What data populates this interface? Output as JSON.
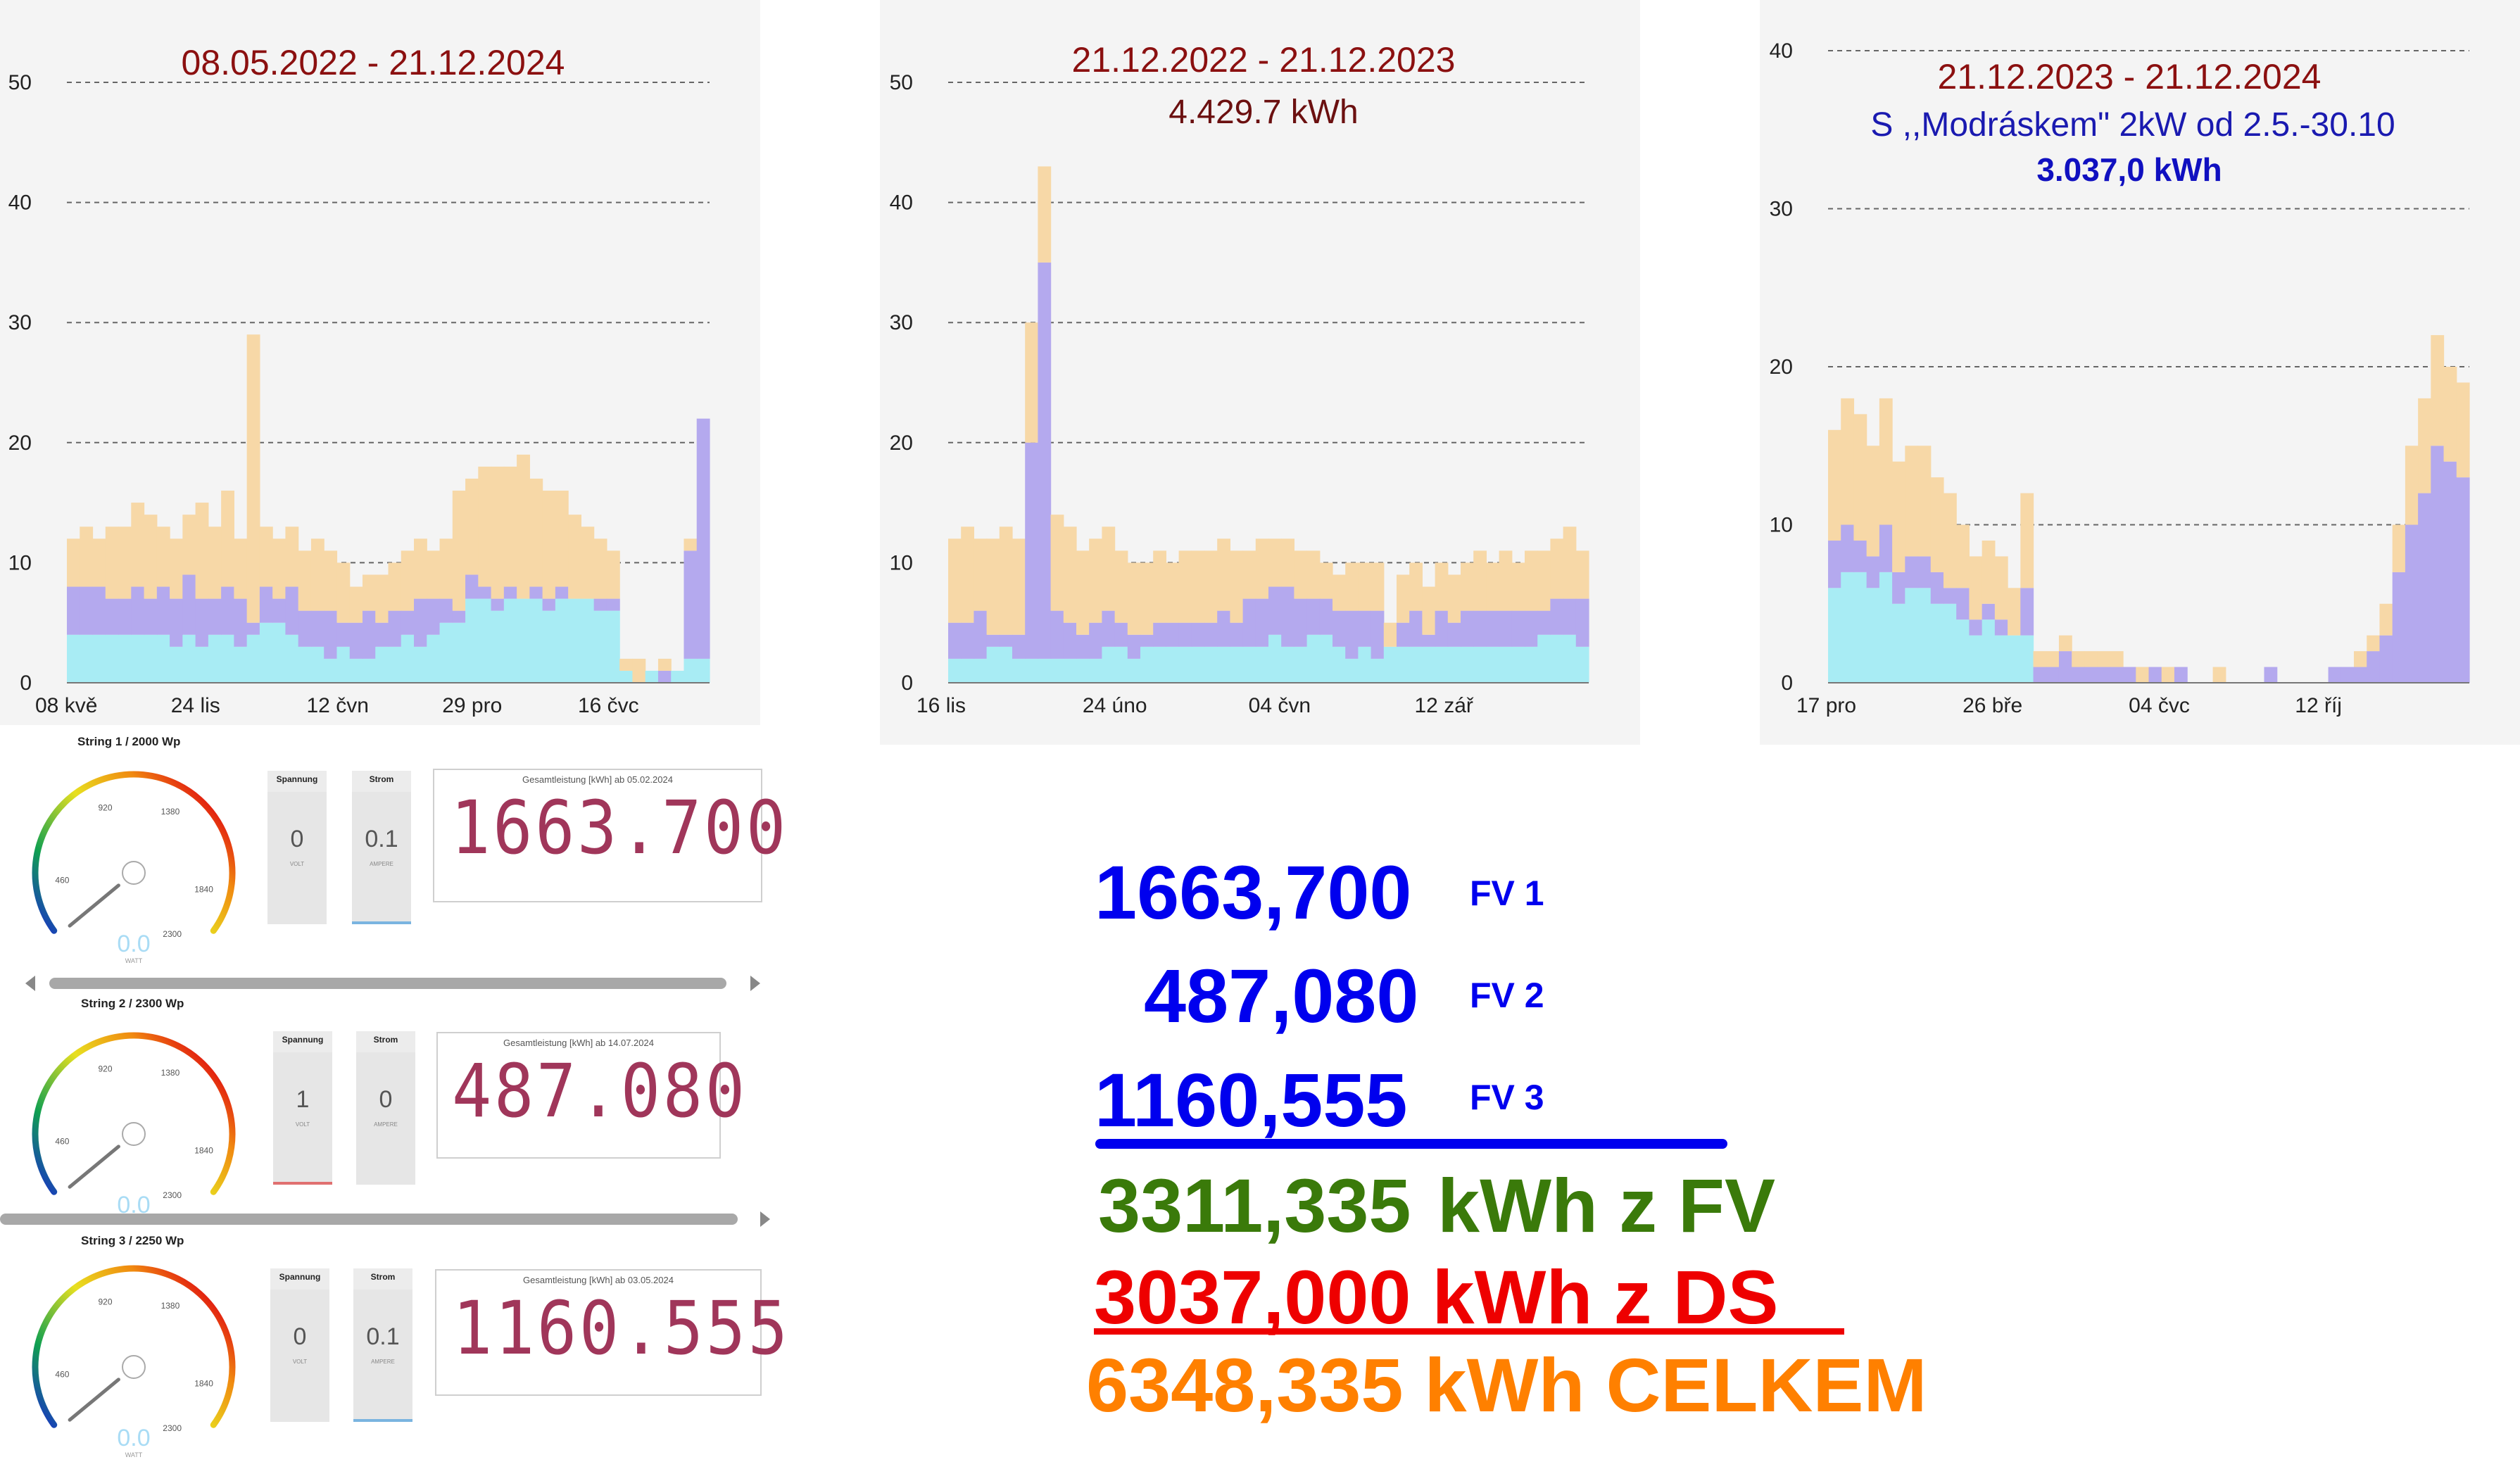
{
  "chart_data": [
    {
      "type": "area",
      "title": "08.05.2022 - 21.12.2024",
      "subtitle": "",
      "subtitle2": "",
      "ylim": [
        0,
        50
      ],
      "yticks": [
        "0",
        "10",
        "20",
        "30",
        "40",
        "50"
      ],
      "xticks": [
        "08 kvě",
        "24 lis",
        "12 čvn",
        "29 pro",
        "16 čvc"
      ],
      "grid": "dashed-horizontal",
      "series": [
        {
          "color": "#a8ecf4",
          "values": [
            4,
            4,
            4,
            4,
            4,
            4,
            4,
            4,
            3,
            4,
            3,
            4,
            4,
            3,
            4,
            5,
            5,
            4,
            3,
            3,
            2,
            3,
            2,
            2,
            3,
            3,
            4,
            3,
            4,
            5,
            5,
            7,
            7,
            6,
            7,
            7,
            7,
            6,
            7,
            7,
            7,
            6,
            6,
            1,
            0,
            1,
            0,
            1,
            2,
            2
          ]
        },
        {
          "color": "#b4a9ee",
          "values": [
            8,
            8,
            8,
            7,
            7,
            8,
            7,
            8,
            7,
            9,
            7,
            7,
            8,
            7,
            5,
            8,
            7,
            8,
            6,
            6,
            6,
            5,
            5,
            6,
            5,
            6,
            6,
            7,
            7,
            7,
            6,
            9,
            8,
            7,
            8,
            7,
            8,
            7,
            8,
            7,
            7,
            7,
            7,
            1,
            0,
            1,
            1,
            1,
            11,
            22
          ]
        },
        {
          "color": "#f7d8a7",
          "values": [
            12,
            13,
            12,
            13,
            13,
            15,
            14,
            13,
            12,
            14,
            15,
            13,
            16,
            12,
            29,
            13,
            12,
            13,
            11,
            12,
            11,
            10,
            8,
            9,
            9,
            10,
            11,
            12,
            11,
            12,
            16,
            17,
            18,
            18,
            18,
            19,
            17,
            16,
            16,
            14,
            13,
            12,
            11,
            2,
            2,
            1,
            2,
            1,
            12,
            20
          ]
        }
      ]
    },
    {
      "type": "area",
      "title": "21.12.2022 - 21.12.2023",
      "subtitle": "4.429.7 kWh",
      "subtitle2": "",
      "ylim": [
        0,
        50
      ],
      "yticks": [
        "0",
        "10",
        "20",
        "30",
        "40",
        "50"
      ],
      "xticks": [
        "16 lis",
        "24 úno",
        "04 čvn",
        "12 zář"
      ],
      "grid": "dashed-horizontal",
      "series": [
        {
          "color": "#a8ecf4",
          "values": [
            2,
            2,
            2,
            3,
            3,
            2,
            2,
            2,
            2,
            2,
            2,
            2,
            3,
            3,
            2,
            3,
            3,
            3,
            3,
            3,
            3,
            3,
            3,
            3,
            3,
            4,
            3,
            3,
            4,
            4,
            3,
            2,
            3,
            2,
            3,
            3,
            3,
            3,
            3,
            3,
            3,
            3,
            3,
            3,
            3,
            3,
            4,
            4,
            4,
            3
          ]
        },
        {
          "color": "#b4a9ee",
          "values": [
            5,
            5,
            6,
            4,
            4,
            4,
            20,
            35,
            6,
            5,
            4,
            5,
            6,
            5,
            4,
            4,
            5,
            5,
            5,
            5,
            5,
            6,
            5,
            7,
            7,
            8,
            8,
            7,
            7,
            7,
            6,
            6,
            6,
            6,
            2,
            5,
            6,
            4,
            6,
            5,
            6,
            6,
            6,
            6,
            6,
            6,
            6,
            7,
            7,
            7
          ]
        },
        {
          "color": "#f7d8a7",
          "values": [
            12,
            13,
            12,
            12,
            13,
            12,
            30,
            43,
            14,
            13,
            11,
            12,
            13,
            11,
            10,
            10,
            11,
            10,
            11,
            11,
            11,
            12,
            11,
            11,
            12,
            12,
            12,
            11,
            11,
            10,
            9,
            10,
            10,
            10,
            5,
            9,
            10,
            8,
            10,
            9,
            10,
            11,
            10,
            11,
            10,
            11,
            11,
            12,
            13,
            11
          ]
        }
      ]
    },
    {
      "type": "area",
      "title": "21.12.2023 - 21.12.2024",
      "subtitle": "S ,,Modráskem\" 2kW od 2.5.-30.10",
      "subtitle2": "3.037,0 kWh",
      "ylim": [
        0,
        40
      ],
      "yticks": [
        "0",
        "10",
        "20",
        "30",
        "40"
      ],
      "xticks": [
        "17 pro",
        "26 bře",
        "04 čvc",
        "12 říj"
      ],
      "grid": "dashed-horizontal",
      "series": [
        {
          "color": "#a8ecf4",
          "values": [
            6,
            7,
            7,
            6,
            7,
            5,
            6,
            6,
            5,
            5,
            4,
            3,
            4,
            3,
            3,
            3,
            0,
            0,
            0,
            0,
            0,
            0,
            0,
            0,
            0,
            0,
            0,
            0,
            0,
            0,
            0,
            0,
            0,
            0,
            0,
            0,
            0,
            0,
            0,
            0,
            0,
            0,
            0,
            0,
            0,
            0,
            0,
            0,
            0,
            0
          ]
        },
        {
          "color": "#b4a9ee",
          "values": [
            9,
            10,
            9,
            8,
            10,
            7,
            8,
            8,
            7,
            6,
            6,
            4,
            5,
            4,
            3,
            6,
            1,
            1,
            2,
            1,
            1,
            1,
            1,
            1,
            0,
            1,
            0,
            1,
            0,
            0,
            0,
            0,
            0,
            0,
            1,
            0,
            0,
            0,
            0,
            1,
            1,
            1,
            2,
            3,
            7,
            10,
            12,
            15,
            14,
            13
          ]
        },
        {
          "color": "#f7d8a7",
          "values": [
            16,
            18,
            17,
            15,
            18,
            14,
            15,
            15,
            13,
            12,
            10,
            8,
            9,
            8,
            6,
            12,
            2,
            2,
            3,
            2,
            2,
            2,
            2,
            1,
            1,
            1,
            1,
            1,
            0,
            0,
            1,
            0,
            0,
            0,
            1,
            0,
            0,
            0,
            0,
            1,
            1,
            2,
            3,
            5,
            10,
            15,
            18,
            22,
            20,
            19
          ]
        }
      ]
    }
  ],
  "strings": [
    {
      "title": "String 1 / 2000 Wp",
      "gauge_value": "0.0",
      "gauge_unit": "WATT",
      "gauge_labels": [
        "460",
        "920",
        "1380",
        "1840",
        "2300"
      ],
      "spannung_label": "Spannung",
      "spannung_value": "0",
      "spannung_unit": "VOLT",
      "strom_label": "Strom",
      "strom_value": "0.1",
      "strom_unit": "AMPERE",
      "lcd_header": "Gesamtleistung [kWh] ab 05.02.2024",
      "lcd_value": "1663.700"
    },
    {
      "title": "String 2 / 2300 Wp",
      "gauge_value": "0.0",
      "gauge_unit": "WATT",
      "gauge_labels": [
        "460",
        "920",
        "1380",
        "1840",
        "2300"
      ],
      "spannung_label": "Spannung",
      "spannung_value": "1",
      "spannung_unit": "VOLT",
      "strom_label": "Strom",
      "strom_value": "0",
      "strom_unit": "AMPERE",
      "lcd_header": "Gesamtleistung [kWh] ab 14.07.2024",
      "lcd_value": "487.080"
    },
    {
      "title": "String 3 / 2250 Wp",
      "gauge_value": "0.0",
      "gauge_unit": "WATT",
      "gauge_labels": [
        "460",
        "920",
        "1380",
        "1840",
        "2300"
      ],
      "spannung_label": "Spannung",
      "spannung_value": "0",
      "spannung_unit": "VOLT",
      "strom_label": "Strom",
      "strom_value": "0.1",
      "strom_unit": "AMPERE",
      "lcd_header": "Gesamtleistung [kWh] ab 03.05.2024",
      "lcd_value": "1160.555"
    }
  ],
  "summary": {
    "fv1_value": "1663,700",
    "fv1_label": "FV 1",
    "fv2_value": "487,080",
    "fv2_label": "FV 2",
    "fv3_value": "1160,555",
    "fv3_label": "FV 3",
    "fv_total": "3311,335",
    "fv_total_suffix": "kWh z FV",
    "ds_total": "3037,000 kWh z DS",
    "grand_total": "6348,335 kWh CELKEM",
    "colors": {
      "blue": "#0000ee",
      "green": "#3a7a0a",
      "red": "#ee0000",
      "orange": "#ff8000"
    }
  }
}
